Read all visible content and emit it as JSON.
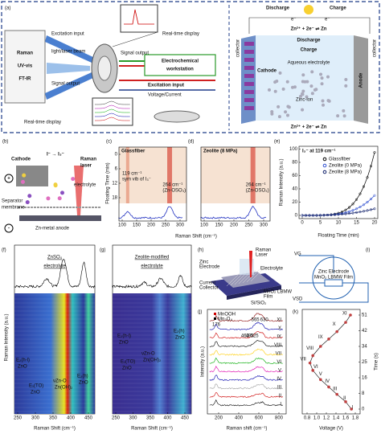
{
  "a": {
    "label": "(a)",
    "instruments": [
      "Raman",
      "UV-vis",
      "FT-IR"
    ],
    "excitation_input_left": "Excitation input",
    "beam": "light/laser beam",
    "signal_output_left": "Signal output",
    "display_top": "Real-time display",
    "display_bottom": "Real-time display",
    "signal_output_mid": "Signal output",
    "workstation": [
      "Electrochemical",
      "workstation"
    ],
    "excitation_input_mid": "Excitation input",
    "voltage_current": "Voltage/Current",
    "discharge": "Discharge",
    "charge": "Charge",
    "electron_left": "e⁻",
    "electron_right": "e⁻",
    "reaction_top": "Zn²⁺ + 2e⁻ ⇌ Zn",
    "reaction_bottom": "Zn²⁺ + 2e⁻ ⇌ Zn",
    "cathode": "Cathode",
    "anode": "Anode",
    "electrolyte": "Aqueous electrolyte",
    "discharge_faint": "Discharge",
    "charge_faint": "Charge",
    "zinc_ion": "Zinc-ion",
    "collector_left": "collector",
    "collector_right": "collector"
  },
  "b": {
    "label": "(b)",
    "cathode": "Cathode",
    "reaction": "I⁻ → I₃⁻",
    "laser": [
      "Raman",
      "laser"
    ],
    "electrolyte": "electrolyte",
    "separator": [
      "Separator",
      "membrane"
    ],
    "anode": "Zn-metal anode",
    "plus": "+",
    "minus": "-"
  },
  "c": {
    "label": "(c)",
    "title": "Glassfiber",
    "ylabel": "Floating Time (min)",
    "yticks": [
      0,
      6,
      12,
      18
    ],
    "xticks": [
      100,
      150,
      200,
      250,
      300
    ],
    "note_119": [
      "119 cm⁻¹",
      "sym vib of I₃⁻"
    ],
    "note_264": [
      "264 cm⁻¹",
      "(Zn-OSO₃)"
    ]
  },
  "d": {
    "label": "(d)",
    "title": "Zeolite (8 MPa)",
    "xticks": [
      100,
      150,
      200,
      250,
      300
    ],
    "note_264": [
      "264 cm⁻¹",
      "(Zn-OSO₃)"
    ],
    "xlabel": "Raman Shift (cm⁻¹)"
  },
  "e": {
    "label": "(e)",
    "title": "I₃⁻ at 119 cm⁻¹",
    "legend": [
      "Glassfiber",
      "Zeolite (0 MPa)",
      "Zeolite (8 MPa)"
    ],
    "xticks": [
      0,
      5,
      10,
      15,
      20
    ],
    "yticks": [
      0,
      20,
      40,
      60,
      80,
      100
    ],
    "xlabel": "Floating Time (min)",
    "ylabel": "Raman Intensity (a.u.)"
  },
  "f": {
    "label": "(f)",
    "title": [
      "ZnSO₄",
      "electrolyte"
    ],
    "ylabel": "Raman Intensity (a.u.)",
    "xlabel": "Raman Shift (cm⁻¹)",
    "xticks": [
      250,
      300,
      350,
      400,
      450
    ],
    "peaks": [
      [
        "E₂(h-l)",
        "ZnO"
      ],
      [
        "E₁(TO)",
        "ZnO"
      ],
      [
        "νZn-O",
        "Zn(OH)₂"
      ],
      [
        "E₂(h)",
        "ZnO"
      ]
    ]
  },
  "g": {
    "label": "(g)",
    "title": [
      "Zeolite-modified",
      "electrolyte"
    ],
    "xlabel": "Raman Shift (cm⁻¹)",
    "xticks": [
      250,
      300,
      350,
      400,
      450
    ],
    "peaks": [
      [
        "E₂(h-l)",
        "ZnO"
      ],
      [
        "E₁(TO)",
        "ZnO"
      ],
      [
        "νZn-O",
        "Zn(OH)₂"
      ],
      [
        "E₂(h)",
        "ZnO"
      ]
    ]
  },
  "h": {
    "label": "(h)",
    "laser": [
      "Raman",
      "Laser"
    ],
    "zinc": [
      "Zinc",
      "Electrode"
    ],
    "electrolyte": "Electrolyte",
    "collector": [
      "Current",
      "Collector"
    ],
    "film": [
      "MnO₂ LBMW",
      "Film"
    ],
    "substrate": "Si/SiO₂"
  },
  "i": {
    "label": "(i)",
    "vg": "VG",
    "zinc": "Zinc Electrode",
    "film": "MnO₂ LBMW Film",
    "vsd": "VSD"
  },
  "j": {
    "label": "(j)",
    "legend": [
      "MnOOH",
      "Mn₃O₄"
    ],
    "peaks": [
      "176",
      "565",
      "630",
      "463",
      "493",
      "525"
    ],
    "ylabel": "Intensity (a.u.)",
    "xlabel": "Raman shift (cm⁻¹)",
    "xticks": [
      200,
      400,
      600,
      800
    ],
    "numerals": [
      "I",
      "II",
      "III",
      "IV",
      "V",
      "VI",
      "VII",
      "VIII",
      "IX",
      "X",
      "XI"
    ]
  },
  "k": {
    "label": "(k)",
    "ylabel": "Time (s)",
    "xlabel": "Voltage (V)",
    "yticks": [
      0,
      8,
      16,
      25,
      34,
      42,
      51
    ],
    "xticks": [
      0.8,
      {
        "value": 1,
        "label": "1.0"
      },
      1.2,
      1.4,
      1.6,
      1.8
    ],
    "numerals": [
      "I",
      "II",
      "III",
      "IV",
      "V",
      "VI",
      "VII",
      "VIII",
      "IX",
      "X",
      "XI"
    ]
  }
}
